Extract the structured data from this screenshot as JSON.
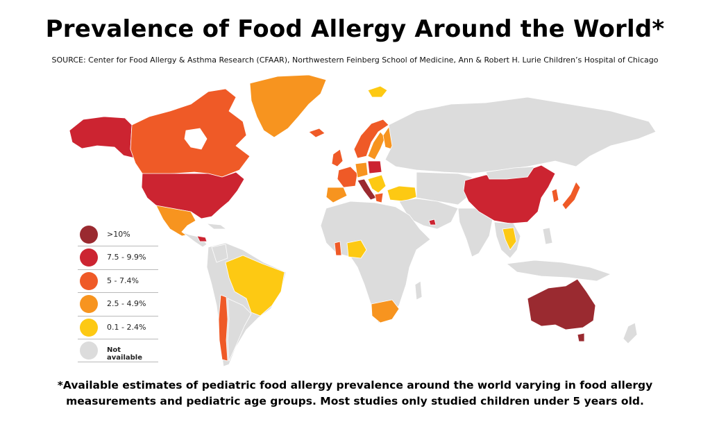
{
  "header": {
    "title": "Prevalence of Food Allergy Around the World*",
    "source": "SOURCE: Center for Food Allergy & Asthma Research (CFAAR), Northwestern Feinberg School of Medicine, Ann & Robert H. Lurie Children’s Hospital of Chicago"
  },
  "legend": {
    "items": [
      {
        "label": ">10%",
        "color": "#9a2a30"
      },
      {
        "label": "7.5 - 9.9%",
        "color": "#cc2431"
      },
      {
        "label": "5 - 7.4%",
        "color": "#ef5a27"
      },
      {
        "label": "2.5 - 4.9%",
        "color": "#f7941f"
      },
      {
        "label": "0.1 - 2.4%",
        "color": "#fdc913"
      },
      {
        "label": "Not available",
        "color": "#dcdcdc"
      }
    ]
  },
  "footnote": {
    "line1": "*Available estimates of pediatric food allergy prevalence around the world varying in food allergy",
    "line2": "measurements and pediatric age groups. Most studies only studied children under 5 years old."
  }
}
